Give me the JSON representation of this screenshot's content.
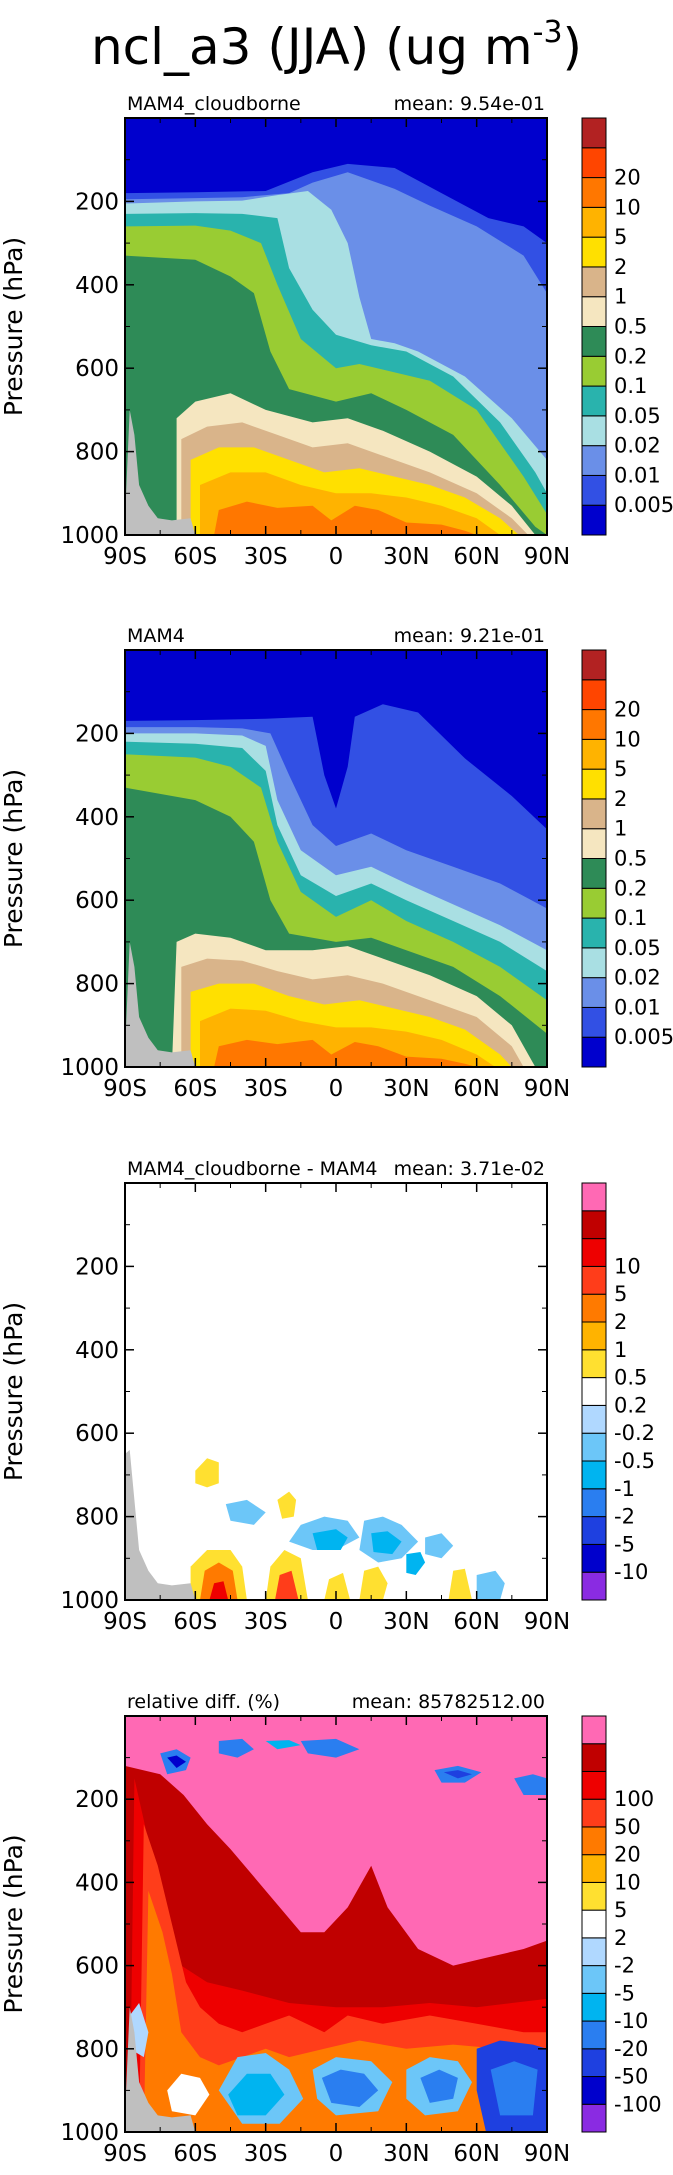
{
  "title": {
    "main": "ncl_a3 (JJA) (ug m",
    "exponent": "-3",
    "close": ")"
  },
  "colors": {
    "abs": [
      "#0000cd",
      "#3250e4",
      "#6a8fe8",
      "#a9dfe3",
      "#29b3ad",
      "#99cc33",
      "#2e8b57",
      "#f5e6c0",
      "#d9b48a",
      "#ffe000",
      "#ffb300",
      "#ff7700",
      "#ff4500",
      "#b22222"
    ],
    "diff": [
      "#8a2be2",
      "#0000cc",
      "#1e40e0",
      "#2a7ef0",
      "#00b4f0",
      "#6cc6f8",
      "#b0d8ff",
      "#ffffff",
      "#ffe030",
      "#ffb300",
      "#ff7a00",
      "#ff3d1a",
      "#ee0000",
      "#c00000",
      "#ff69b4"
    ],
    "missing": "#bfbfbf"
  },
  "chart_data": [
    {
      "type": "heatmap",
      "title": "MAM4_cloudborne",
      "mean_label": "mean: 9.54e-01",
      "ylabel": "Pressure (hPa)",
      "x_ticks": [
        "90S",
        "60S",
        "30S",
        "0",
        "30N",
        "60N",
        "90N"
      ],
      "y_ticks": [
        "200",
        "400",
        "600",
        "800",
        "1000"
      ],
      "xlim": [
        -90,
        90
      ],
      "ylim": [
        1000,
        0
      ],
      "levels": [
        "0.005",
        "0.01",
        "0.02",
        "0.05",
        "0.1",
        "0.2",
        "0.5",
        "1",
        "2",
        "5",
        "10",
        "20"
      ],
      "colormap": "abs"
    },
    {
      "type": "heatmap",
      "title": "MAM4",
      "mean_label": "mean: 9.21e-01",
      "ylabel": "Pressure (hPa)",
      "x_ticks": [
        "90S",
        "60S",
        "30S",
        "0",
        "30N",
        "60N",
        "90N"
      ],
      "y_ticks": [
        "200",
        "400",
        "600",
        "800",
        "1000"
      ],
      "xlim": [
        -90,
        90
      ],
      "ylim": [
        1000,
        0
      ],
      "levels": [
        "0.005",
        "0.01",
        "0.02",
        "0.05",
        "0.1",
        "0.2",
        "0.5",
        "1",
        "2",
        "5",
        "10",
        "20"
      ],
      "colormap": "abs"
    },
    {
      "type": "heatmap",
      "title": "MAM4_cloudborne - MAM4",
      "mean_label": "mean: 3.71e-02",
      "ylabel": "Pressure (hPa)",
      "x_ticks": [
        "90S",
        "60S",
        "30S",
        "0",
        "30N",
        "60N",
        "90N"
      ],
      "y_ticks": [
        "200",
        "400",
        "600",
        "800",
        "1000"
      ],
      "xlim": [
        -90,
        90
      ],
      "ylim": [
        1000,
        0
      ],
      "levels": [
        "-10",
        "-5",
        "-2",
        "-1",
        "-0.5",
        "-0.2",
        "0.2",
        "0.5",
        "1",
        "2",
        "5",
        "10"
      ],
      "colormap": "diff"
    },
    {
      "type": "heatmap",
      "title": "relative diff. (%)",
      "mean_label": "mean: 85782512.00",
      "ylabel": "Pressure (hPa)",
      "x_ticks": [
        "90S",
        "60S",
        "30S",
        "0",
        "30N",
        "60N",
        "90N"
      ],
      "y_ticks": [
        "200",
        "400",
        "600",
        "800",
        "1000"
      ],
      "xlim": [
        -90,
        90
      ],
      "ylim": [
        1000,
        0
      ],
      "levels": [
        "-100",
        "-50",
        "-20",
        "-10",
        "-5",
        "-2",
        "2",
        "5",
        "10",
        "20",
        "50",
        "100"
      ],
      "colormap": "diff"
    }
  ]
}
